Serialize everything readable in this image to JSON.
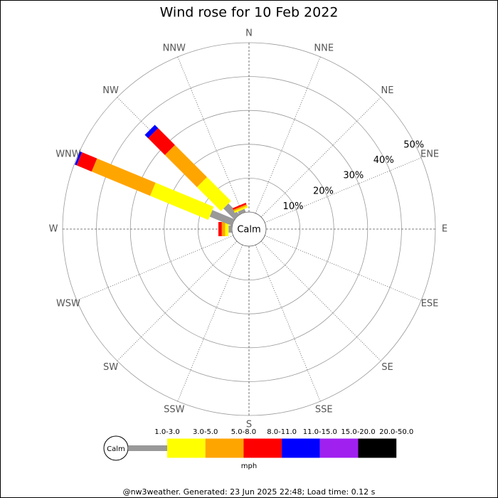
{
  "chart_data": {
    "type": "windrose",
    "title": "Wind rose for 10 Feb 2022",
    "directions": [
      "N",
      "NNE",
      "NE",
      "ENE",
      "E",
      "ESE",
      "SE",
      "SSE",
      "S",
      "SSW",
      "SW",
      "WSW",
      "W",
      "WNW",
      "NW",
      "NNW"
    ],
    "calm_label": "Calm",
    "rlim": [
      0,
      50
    ],
    "rticks": [
      {
        "value": 10,
        "label": "10%"
      },
      {
        "value": 20,
        "label": "20%"
      },
      {
        "value": 30,
        "label": "30%"
      },
      {
        "value": 40,
        "label": "40%"
      },
      {
        "value": 50,
        "label": "50%"
      }
    ],
    "unit": "mph",
    "series": [
      {
        "name": "1.0-3.0",
        "color": "#999999",
        "values": [
          0,
          0,
          0,
          0,
          0,
          0,
          0,
          0,
          0,
          0,
          0,
          0,
          1,
          7.1,
          4.6,
          1
        ]
      },
      {
        "name": "3.0-5.0",
        "color": "#ffff00",
        "values": [
          0,
          0,
          0,
          0,
          0,
          0,
          0,
          0,
          0,
          0,
          0,
          0,
          1,
          18.6,
          10,
          0.5
        ]
      },
      {
        "name": "5.0-8.0",
        "color": "#ffa500",
        "values": [
          0,
          0,
          0,
          0,
          0,
          0,
          0,
          0,
          0,
          0,
          0,
          0,
          1,
          18.7,
          13.4,
          0.5
        ]
      },
      {
        "name": "8.0-11.0",
        "color": "#ff0000",
        "values": [
          0,
          0,
          0,
          0,
          0,
          0,
          0,
          0,
          0,
          0,
          0,
          0,
          1,
          4.8,
          7,
          0.5
        ]
      },
      {
        "name": "11.0-15.0",
        "color": "#0000ff",
        "values": [
          0,
          0,
          0,
          0,
          0,
          0,
          0,
          0,
          0,
          0,
          0,
          0,
          0,
          0.6,
          1.4,
          0
        ]
      },
      {
        "name": "15.0-20.0",
        "color": "#a020f0",
        "values": [
          0,
          0,
          0,
          0,
          0,
          0,
          0,
          0,
          0,
          0,
          0,
          0,
          0,
          0,
          0,
          0
        ]
      },
      {
        "name": "20.0-50.0",
        "color": "#000000",
        "values": [
          0,
          0,
          0,
          0,
          0,
          0,
          0,
          0,
          0,
          0,
          0,
          0,
          0,
          0,
          0,
          0
        ]
      }
    ],
    "footer": "@nw3weather. Generated: 23 Jun 2025 22:48; Load time: 0.12 s"
  }
}
